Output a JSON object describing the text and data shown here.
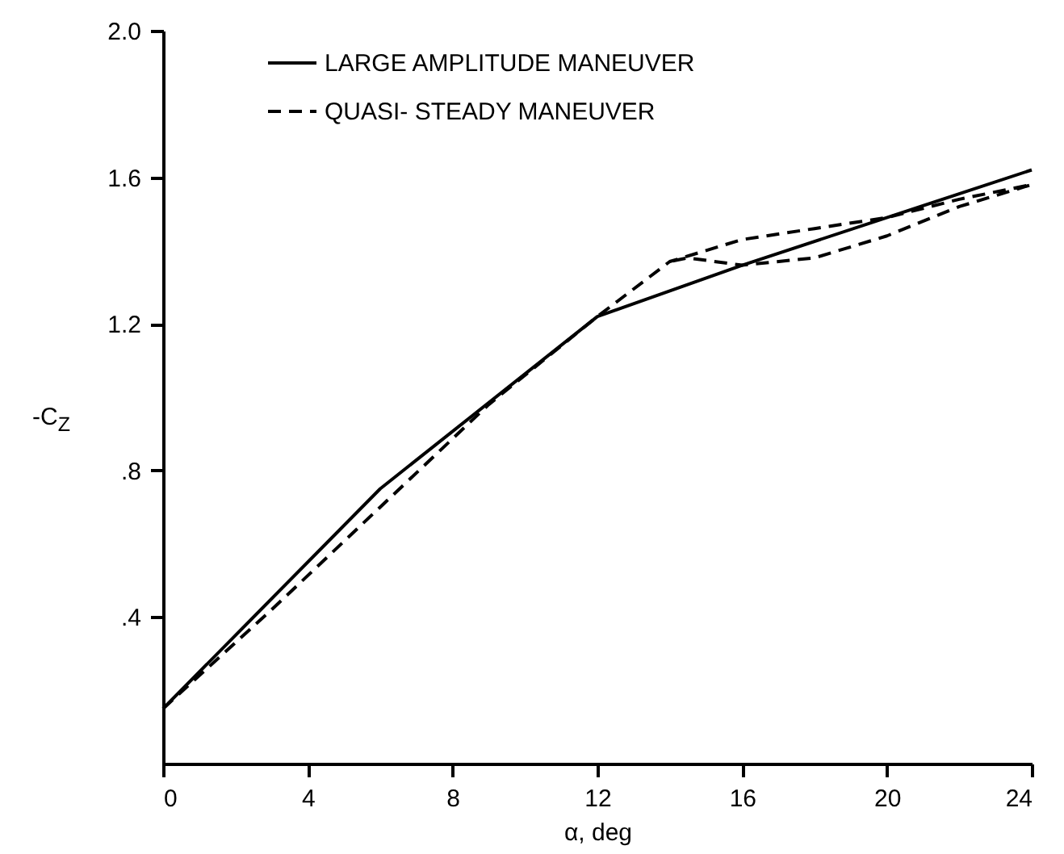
{
  "chart_data": {
    "type": "line",
    "xlabel": "α, deg",
    "ylabel": "-C$_{Z}$",
    "xlim": [
      0,
      24
    ],
    "xticks": [
      0,
      4,
      8,
      12,
      16,
      20,
      24
    ],
    "ylim": [
      0,
      2.0
    ],
    "yticks": [
      {
        "value": 0.4,
        "label": ".4"
      },
      {
        "value": 0.8,
        "label": ".8"
      },
      {
        "value": 1.2,
        "label": "1.2"
      },
      {
        "value": 1.6,
        "label": "1.6"
      },
      {
        "value": 2.0,
        "label": "2.0"
      }
    ],
    "grid": false,
    "legend": "top left",
    "series": [
      {
        "name": "LARGE AMPLITUDE MANEUVER",
        "color": "#000000",
        "line_style": "solid",
        "x": [
          0,
          2,
          6,
          12,
          16,
          24
        ],
        "values": [
          0.15,
          0.35,
          0.75,
          1.22,
          1.36,
          1.62
        ]
      },
      {
        "name": "QUASI- STEADY MANEUVER",
        "color": "#000000",
        "line_style": "dashed",
        "x": [
          0,
          3,
          6,
          9,
          12,
          14,
          16,
          18,
          20,
          22,
          24,
          22,
          20,
          18,
          16,
          14.5,
          14
        ],
        "values": [
          0.15,
          0.42,
          0.7,
          0.98,
          1.22,
          1.37,
          1.43,
          1.46,
          1.49,
          1.54,
          1.58,
          1.52,
          1.44,
          1.38,
          1.36,
          1.38,
          1.37
        ]
      }
    ]
  }
}
